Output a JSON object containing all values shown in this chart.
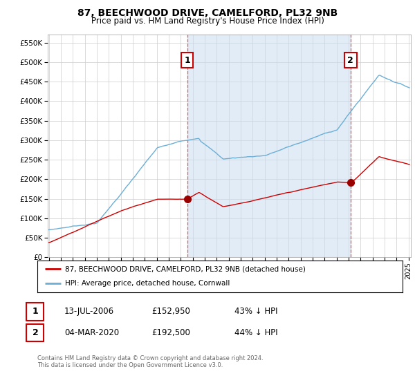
{
  "title": "87, BEECHWOOD DRIVE, CAMELFORD, PL32 9NB",
  "subtitle": "Price paid vs. HM Land Registry's House Price Index (HPI)",
  "ytick_labels": [
    "£0",
    "£50K",
    "£100K",
    "£150K",
    "£200K",
    "£250K",
    "£300K",
    "£350K",
    "£400K",
    "£450K",
    "£500K",
    "£550K"
  ],
  "yticks": [
    0,
    50000,
    100000,
    150000,
    200000,
    250000,
    300000,
    350000,
    400000,
    450000,
    500000,
    550000
  ],
  "ylim": [
    0,
    570000
  ],
  "xlim_start": 1995.0,
  "xlim_end": 2025.2,
  "legend_line1": "87, BEECHWOOD DRIVE, CAMELFORD, PL32 9NB (detached house)",
  "legend_line2": "HPI: Average price, detached house, Cornwall",
  "annotation1_label": "1",
  "annotation1_date": "13-JUL-2006",
  "annotation1_price": "£152,950",
  "annotation1_hpi": "43% ↓ HPI",
  "annotation1_year": 2006.54,
  "annotation1_value": 152950,
  "annotation2_label": "2",
  "annotation2_date": "04-MAR-2020",
  "annotation2_price": "£192,500",
  "annotation2_hpi": "44% ↓ HPI",
  "annotation2_year": 2020.17,
  "annotation2_value": 192500,
  "footer": "Contains HM Land Registry data © Crown copyright and database right 2024.\nThis data is licensed under the Open Government Licence v3.0.",
  "hpi_color": "#6baed6",
  "hpi_fill_color": "#c6dbef",
  "price_color": "#cc0000",
  "dot_color": "#990000",
  "vline_color": "#ff4444",
  "background_color": "#ffffff",
  "grid_color": "#cccccc",
  "box_edge_color": "#cc0000"
}
